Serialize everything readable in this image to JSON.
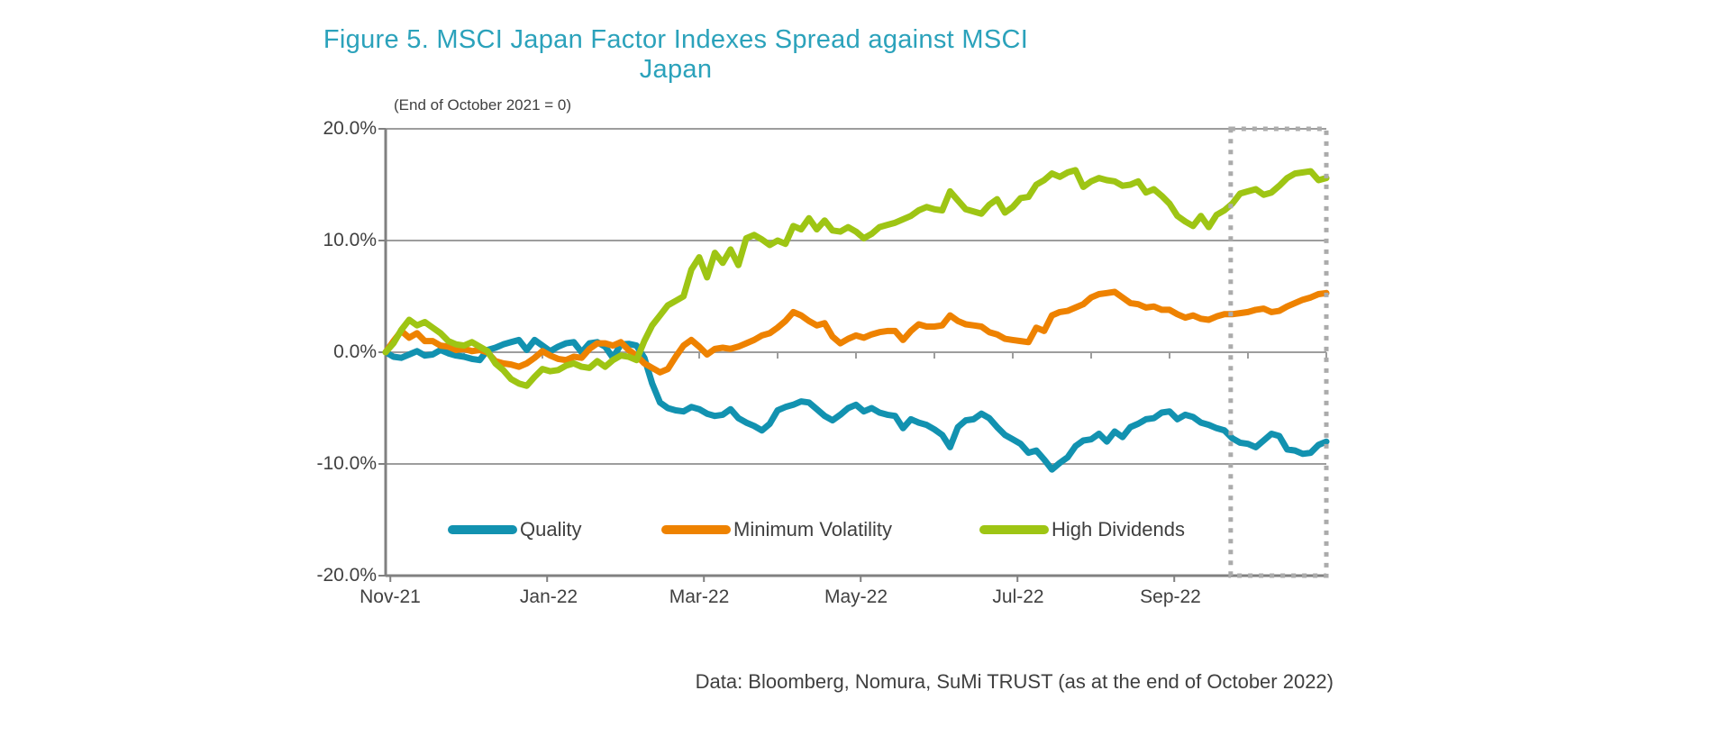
{
  "figure": {
    "title": "Figure 5. MSCI Japan Factor Indexes Spread against MSCI Japan",
    "subtitle": "(End of October 2021 = 0)",
    "source_note": "Data: Bloomberg, Nomura, SuMi TRUST (as at the end of October 2022)"
  },
  "colors": {
    "title_text": "#2BA2BB",
    "axis_text": "#404040",
    "grid_line": "#9D9D9D",
    "axis_line": "#808080",
    "highlight_box": "#ABABAB",
    "quality": "#1292B0",
    "minimum_volatility": "#EE8200",
    "high_dividends": "#9EC514"
  },
  "chart_data": {
    "type": "line",
    "title": "Figure 5. MSCI Japan Factor Indexes Spread against MSCI Japan",
    "subtitle": "(End of October 2021 = 0)",
    "x_axis": {
      "start": "end of October 2021",
      "end": "end of October 2022",
      "range_months": [
        0,
        12
      ],
      "tick_labels": [
        "Nov-21",
        "Jan-22",
        "Mar-22",
        "May-22",
        "Jul-22",
        "Sep-22"
      ],
      "tick_positions_months": [
        0,
        2,
        4,
        6,
        8,
        10
      ],
      "minor_ticks_every_month": true
    },
    "y_axis": {
      "unit": "%",
      "ticks": [
        20,
        10,
        0,
        -10,
        -20
      ],
      "tick_labels": [
        "20.0%",
        "10.0%",
        "0.0%",
        "-10.0%",
        "-20.0%"
      ],
      "ylim": [
        -20,
        20
      ],
      "grid": true
    },
    "sampling": "spread vs MSCI Japan in %, sampled every 0.1 month from end-Oct 2021 to end-Oct 2022",
    "highlight_box": {
      "from_month": 10.78,
      "to_month": 12,
      "covers": "October 2022",
      "style": "gray dotted rectangle, full plot height"
    },
    "legend_position": "bottom-inside",
    "series": [
      {
        "name": "Quality",
        "color": "#1292B0",
        "values": [
          0,
          -0.4,
          -0.5,
          -0.2,
          0.1,
          -0.3,
          -0.2,
          0.2,
          -0.1,
          -0.3,
          -0.4,
          -0.6,
          -0.7,
          0.2,
          0.4,
          0.7,
          0.9,
          1.1,
          0.2,
          1.1,
          0.6,
          0.1,
          0.5,
          0.8,
          0.9,
          0,
          0.8,
          0.9,
          0.5,
          -0.5,
          0.7,
          0.75,
          0.6,
          -0.5,
          -2.8,
          -4.5,
          -5,
          -5.2,
          -5.3,
          -4.9,
          -5.1,
          -5.5,
          -5.7,
          -5.6,
          -5.1,
          -5.9,
          -6.3,
          -6.6,
          -7,
          -6.4,
          -5.2,
          -4.9,
          -4.7,
          -4.4,
          -4.5,
          -5.1,
          -5.7,
          -6.1,
          -5.6,
          -5,
          -4.7,
          -5.3,
          -5,
          -5.4,
          -5.6,
          -5.7,
          -6.8,
          -6,
          -6.3,
          -6.5,
          -6.9,
          -7.4,
          -8.5,
          -6.7,
          -6.1,
          -6,
          -5.5,
          -5.9,
          -6.7,
          -7.4,
          -7.8,
          -8.2,
          -9,
          -8.8,
          -9.6,
          -10.5,
          -9.9,
          -9.4,
          -8.4,
          -7.9,
          -7.8,
          -7.3,
          -8,
          -7.1,
          -7.6,
          -6.7,
          -6.4,
          -6,
          -5.9,
          -5.4,
          -5.3,
          -6,
          -5.6,
          -5.8,
          -6.3,
          -6.5,
          -6.8,
          -7,
          -7.7,
          -8.1,
          -8.2,
          -8.5,
          -7.9,
          -7.3,
          -7.5,
          -8.7,
          -8.8,
          -9.1,
          -9,
          -8.3,
          -8
        ]
      },
      {
        "name": "Minimum Volatility",
        "color": "#EE8200",
        "values": [
          0,
          1,
          1.9,
          1.3,
          1.7,
          1,
          1,
          0.6,
          0.5,
          0.2,
          0.3,
          0.1,
          0.2,
          0,
          -0.8,
          -1,
          -1.1,
          -1.3,
          -1,
          -0.5,
          0.1,
          -0.3,
          -0.6,
          -0.7,
          -0.4,
          -0.5,
          0.3,
          0.8,
          0.8,
          0.6,
          0.9,
          0.2,
          -0.3,
          -1,
          -1.4,
          -1.8,
          -1.5,
          -0.4,
          0.6,
          1.1,
          0.5,
          -0.2,
          0.3,
          0.4,
          0.3,
          0.5,
          0.8,
          1.1,
          1.5,
          1.7,
          2.2,
          2.8,
          3.6,
          3.3,
          2.8,
          2.4,
          2.6,
          1.4,
          0.8,
          1.2,
          1.5,
          1.3,
          1.6,
          1.8,
          1.9,
          1.9,
          1.1,
          1.9,
          2.5,
          2.3,
          2.3,
          2.4,
          3.3,
          2.8,
          2.5,
          2.4,
          2.3,
          1.8,
          1.6,
          1.2,
          1.1,
          1,
          0.9,
          2.2,
          1.9,
          3.3,
          3.6,
          3.7,
          4,
          4.3,
          4.9,
          5.2,
          5.3,
          5.4,
          4.9,
          4.4,
          4.3,
          4,
          4.1,
          3.8,
          3.8,
          3.4,
          3.1,
          3.3,
          3,
          2.9,
          3.2,
          3.4,
          3.4,
          3.5,
          3.6,
          3.8,
          3.9,
          3.6,
          3.7,
          4.1,
          4.4,
          4.7,
          4.9,
          5.2,
          5.3
        ]
      },
      {
        "name": "High Dividends",
        "color": "#9EC514",
        "values": [
          0,
          0.8,
          2,
          2.9,
          2.4,
          2.7,
          2.2,
          1.7,
          1,
          0.7,
          0.6,
          0.9,
          0.5,
          0.1,
          -1,
          -1.6,
          -2.4,
          -2.8,
          -3,
          -2.2,
          -1.5,
          -1.7,
          -1.6,
          -1.2,
          -1,
          -1.3,
          -1.4,
          -0.8,
          -1.3,
          -0.7,
          -0.3,
          -0.4,
          -0.7,
          1,
          2.4,
          3.3,
          4.2,
          4.6,
          5,
          7.4,
          8.5,
          6.7,
          8.9,
          8,
          9.2,
          7.8,
          10.2,
          10.5,
          10.1,
          9.6,
          10,
          9.7,
          11.3,
          11,
          12,
          11,
          11.8,
          10.9,
          10.8,
          11.2,
          10.8,
          10.2,
          10.6,
          11.2,
          11.4,
          11.6,
          11.9,
          12.2,
          12.7,
          13,
          12.8,
          12.7,
          14.4,
          13.6,
          12.8,
          12.6,
          12.4,
          13.2,
          13.7,
          12.5,
          13,
          13.8,
          13.9,
          15,
          15.4,
          16,
          15.7,
          16.1,
          16.3,
          14.8,
          15.3,
          15.6,
          15.4,
          15.3,
          14.9,
          15,
          15.3,
          14.3,
          14.6,
          14,
          13.3,
          12.2,
          11.7,
          11.3,
          12.2,
          11.2,
          12.3,
          12.7,
          13.3,
          14.2,
          14.4,
          14.6,
          14.1,
          14.3,
          14.9,
          15.6,
          16,
          16.1,
          16.2,
          15.4,
          15.6
        ]
      }
    ]
  },
  "legend": {
    "items": [
      {
        "label": "Quality"
      },
      {
        "label": "Minimum Volatility"
      },
      {
        "label": "High Dividends"
      }
    ]
  }
}
